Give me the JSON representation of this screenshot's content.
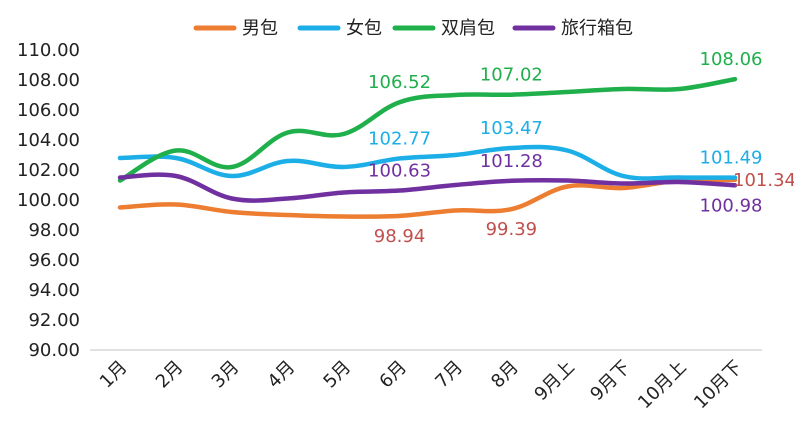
{
  "chart_data": {
    "type": "line",
    "title": "",
    "xlabel": "",
    "ylabel": "",
    "ylim": [
      90,
      110
    ],
    "yticks": [
      "90.00",
      "92.00",
      "94.00",
      "96.00",
      "98.00",
      "100.00",
      "102.00",
      "104.00",
      "106.00",
      "108.00",
      "110.00"
    ],
    "categories": [
      "1月",
      "2月",
      "3月",
      "4月",
      "5月",
      "6月",
      "7月",
      "8月",
      "9月上",
      "9月下",
      "10月上",
      "10月下"
    ],
    "grid": false,
    "legend_position": "top",
    "series": [
      {
        "name": "男包",
        "color": "#ED7D31",
        "label_color": "#C0504D",
        "values": [
          99.5,
          99.7,
          99.2,
          99.0,
          98.9,
          98.94,
          99.3,
          99.39,
          100.9,
          100.8,
          101.3,
          101.34
        ],
        "labeled": [
          {
            "index": 5,
            "text": "98.94",
            "pos": "below"
          },
          {
            "index": 7,
            "text": "99.39",
            "pos": "below"
          },
          {
            "index": 11,
            "text": "101.34",
            "pos": "right"
          }
        ]
      },
      {
        "name": "女包",
        "color": "#1CAEE6",
        "label_color": "#1CAEE6",
        "values": [
          102.8,
          102.8,
          101.6,
          102.6,
          102.2,
          102.77,
          103.0,
          103.47,
          103.3,
          101.6,
          101.5,
          101.49
        ],
        "labeled": [
          {
            "index": 5,
            "text": "102.77",
            "pos": "above"
          },
          {
            "index": 7,
            "text": "103.47",
            "pos": "above"
          },
          {
            "index": 11,
            "text": "101.49",
            "pos": "above"
          }
        ]
      },
      {
        "name": "双肩包",
        "color": "#1FAF4B",
        "label_color": "#1FAF4B",
        "values": [
          101.3,
          103.3,
          102.2,
          104.5,
          104.4,
          106.52,
          107.0,
          107.02,
          107.2,
          107.4,
          107.4,
          108.06
        ],
        "labeled": [
          {
            "index": 5,
            "text": "106.52",
            "pos": "above"
          },
          {
            "index": 7,
            "text": "107.02",
            "pos": "above"
          },
          {
            "index": 11,
            "text": "108.06",
            "pos": "above"
          }
        ]
      },
      {
        "name": "旅行箱包",
        "color": "#7030A0",
        "label_color": "#7030A0",
        "values": [
          101.5,
          101.6,
          100.1,
          100.1,
          100.5,
          100.63,
          101.0,
          101.28,
          101.3,
          101.1,
          101.2,
          100.98
        ],
        "labeled": [
          {
            "index": 5,
            "text": "100.63",
            "pos": "above"
          },
          {
            "index": 7,
            "text": "101.28",
            "pos": "above"
          },
          {
            "index": 11,
            "text": "100.98",
            "pos": "below"
          }
        ]
      }
    ]
  }
}
